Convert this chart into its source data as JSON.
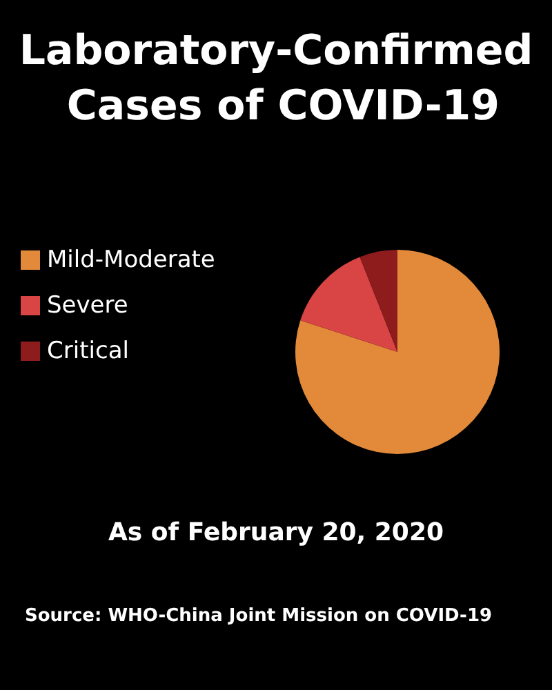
{
  "chart_data": {
    "type": "pie",
    "title": "Laboratory-Confirmed Cases of COVID-19",
    "subtitle": "As of February 20, 2020",
    "annotations": [
      "Source: WHO-China Joint Mission on COVID-19"
    ],
    "categories": [
      "Mild-Moderate",
      "Severe",
      "Critical"
    ],
    "values": [
      80,
      14,
      6
    ],
    "colors": [
      "#e38a3a",
      "#d94444",
      "#8e1c1c"
    ],
    "legend": "top left"
  }
}
